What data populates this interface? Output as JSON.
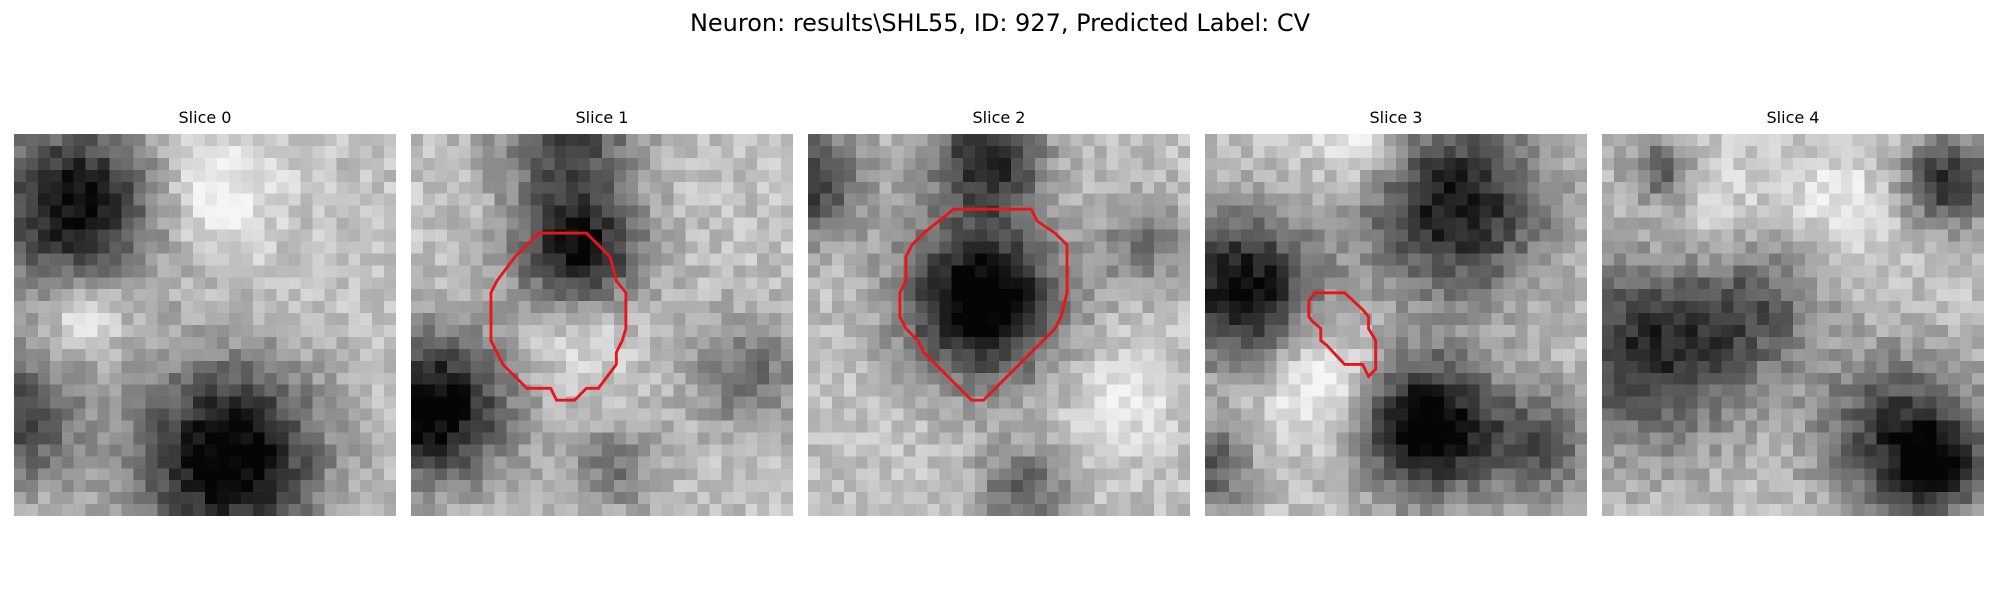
{
  "figure": {
    "title": "Neuron: results\\SHL55, ID: 927, Predicted Label: CV",
    "outline_color": "#e8151b",
    "panels": [
      {
        "title": "Slice 0",
        "blobs": [
          {
            "x": 5,
            "y": 6,
            "r": 7.5,
            "v": 0.72
          },
          {
            "x": 18,
            "y": 27,
            "r": 8,
            "v": 0.82
          },
          {
            "x": 0,
            "y": 24,
            "r": 6,
            "v": 0.5
          },
          {
            "x": 6,
            "y": 15,
            "r": 3,
            "v": -0.3
          },
          {
            "x": 17,
            "y": 5,
            "r": 5,
            "v": -0.25
          }
        ],
        "outline": []
      },
      {
        "title": "Slice 1",
        "blobs": [
          {
            "x": 2,
            "y": 23,
            "r": 6.5,
            "v": 0.8
          },
          {
            "x": 14,
            "y": 10,
            "r": 5.5,
            "v": 0.72
          },
          {
            "x": 14,
            "y": 16,
            "r": 4.5,
            "v": -0.2
          },
          {
            "x": 13,
            "y": 0,
            "r": 6,
            "v": 0.5
          },
          {
            "x": 17,
            "y": 28,
            "r": 4,
            "v": 0.3
          },
          {
            "x": 28,
            "y": 20,
            "r": 5,
            "v": 0.35
          }
        ],
        "outline": [
          [
            10.7,
            8.3
          ],
          [
            14.7,
            8.3
          ],
          [
            16.7,
            10.3
          ],
          [
            17.2,
            12.3
          ],
          [
            18.0,
            13.3
          ],
          [
            18.0,
            16.3
          ],
          [
            17.7,
            17.3
          ],
          [
            17.2,
            18.3
          ],
          [
            17.2,
            19.3
          ],
          [
            15.7,
            21.3
          ],
          [
            14.7,
            21.3
          ],
          [
            13.7,
            22.3
          ],
          [
            12.2,
            22.3
          ],
          [
            11.7,
            21.3
          ],
          [
            9.7,
            21.3
          ],
          [
            7.7,
            19.3
          ],
          [
            7.2,
            18.3
          ],
          [
            6.7,
            17.3
          ],
          [
            6.7,
            13.3
          ],
          [
            7.2,
            12.3
          ],
          [
            8.7,
            10.3
          ]
        ]
      },
      {
        "title": "Slice 2",
        "blobs": [
          {
            "x": 14.5,
            "y": 14,
            "r": 6.8,
            "v": 0.88
          },
          {
            "x": 15,
            "y": 2,
            "r": 5,
            "v": 0.6
          },
          {
            "x": 0,
            "y": 4,
            "r": 5,
            "v": 0.55
          },
          {
            "x": 28,
            "y": 9,
            "r": 4,
            "v": 0.3
          },
          {
            "x": 18,
            "y": 30,
            "r": 4,
            "v": 0.4
          },
          {
            "x": 26,
            "y": 22,
            "r": 4,
            "v": -0.2
          }
        ],
        "outline": [
          [
            12.2,
            6.3
          ],
          [
            18.7,
            6.3
          ],
          [
            19.2,
            7.3
          ],
          [
            20.7,
            8.3
          ],
          [
            21.7,
            9.3
          ],
          [
            21.7,
            13.3
          ],
          [
            21.2,
            15.3
          ],
          [
            20.7,
            16.3
          ],
          [
            14.7,
            22.3
          ],
          [
            13.7,
            22.3
          ],
          [
            10.7,
            19.3
          ],
          [
            9.7,
            18.3
          ],
          [
            9.2,
            17.3
          ],
          [
            8.2,
            16.3
          ],
          [
            7.7,
            15.3
          ],
          [
            7.7,
            13.3
          ],
          [
            8.2,
            12.3
          ],
          [
            8.2,
            10.3
          ],
          [
            8.7,
            9.3
          ],
          [
            9.7,
            8.3
          ]
        ]
      },
      {
        "title": "Slice 3",
        "blobs": [
          {
            "x": 3,
            "y": 13,
            "r": 6.5,
            "v": 0.75
          },
          {
            "x": 18.5,
            "y": 24.5,
            "r": 6,
            "v": 0.85
          },
          {
            "x": 21,
            "y": 6,
            "r": 8,
            "v": 0.68
          },
          {
            "x": 10,
            "y": 21,
            "r": 5,
            "v": -0.3
          },
          {
            "x": 28,
            "y": 26,
            "r": 5,
            "v": 0.4
          },
          {
            "x": 0,
            "y": 28,
            "r": 4,
            "v": 0.45
          },
          {
            "x": 13,
            "y": 1,
            "r": 4,
            "v": -0.25
          }
        ],
        "outline": [
          [
            9.2,
            13.3
          ],
          [
            11.7,
            13.3
          ],
          [
            13.2,
            14.7
          ],
          [
            13.7,
            15.3
          ],
          [
            13.7,
            16.3
          ],
          [
            14.3,
            17.3
          ],
          [
            14.3,
            19.7
          ],
          [
            13.7,
            20.3
          ],
          [
            13.2,
            19.3
          ],
          [
            11.7,
            19.3
          ],
          [
            10.2,
            17.7
          ],
          [
            9.7,
            17.3
          ],
          [
            9.7,
            16.3
          ],
          [
            9.0,
            15.7
          ],
          [
            8.7,
            15.3
          ],
          [
            8.7,
            14.0
          ]
        ]
      },
      {
        "title": "Slice 4",
        "blobs": [
          {
            "x": 4,
            "y": 18,
            "r": 8.5,
            "v": 0.6
          },
          {
            "x": 13,
            "y": 14,
            "r": 6,
            "v": 0.35
          },
          {
            "x": 25,
            "y": 25,
            "r": 7,
            "v": 0.55
          },
          {
            "x": 28,
            "y": 28,
            "r": 4,
            "v": 0.5
          },
          {
            "x": 29,
            "y": 4,
            "r": 4,
            "v": 0.6
          },
          {
            "x": 5,
            "y": 3,
            "r": 3,
            "v": 0.4
          },
          {
            "x": 9,
            "y": 8,
            "r": 6,
            "v": -0.15
          },
          {
            "x": 20,
            "y": 6,
            "r": 5,
            "v": -0.15
          }
        ],
        "outline": []
      }
    ]
  }
}
